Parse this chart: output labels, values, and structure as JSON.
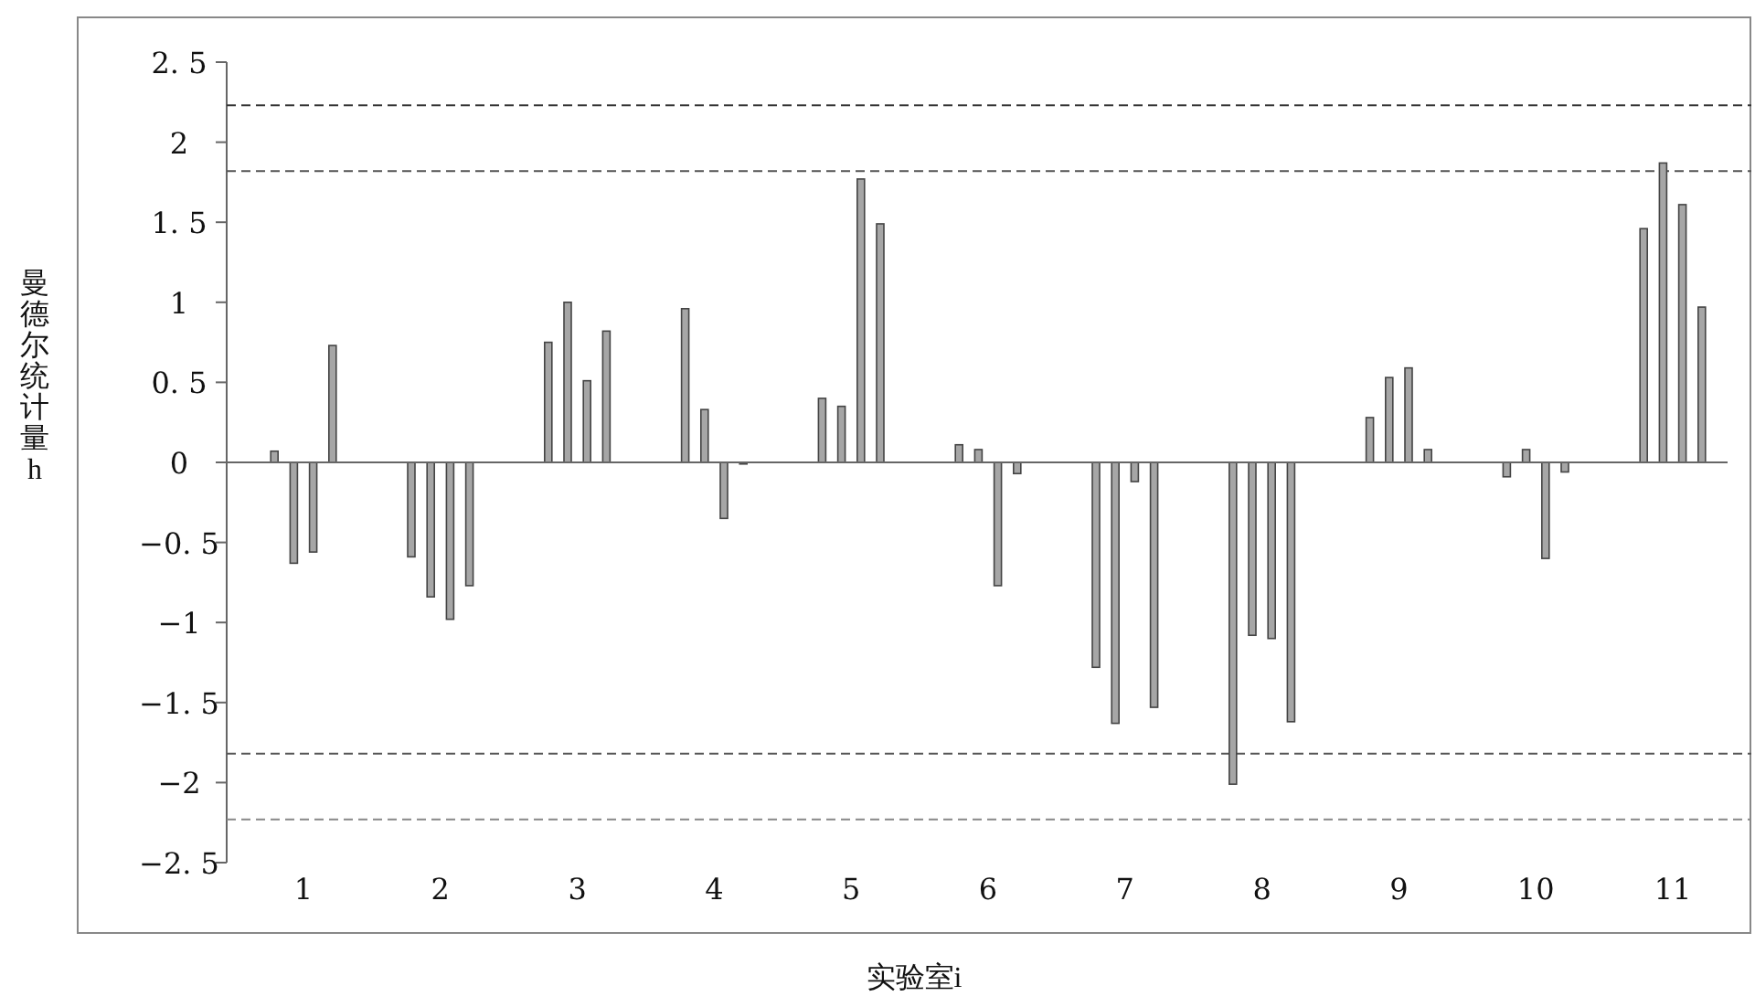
{
  "chart_data": {
    "type": "bar",
    "xlabel": "实验室i",
    "ylabel": "曼德尔统计量h",
    "categories": [
      "1",
      "2",
      "3",
      "4",
      "5",
      "6",
      "7",
      "8",
      "9",
      "10",
      "11"
    ],
    "series": [
      {
        "color": "#a6a6a6",
        "values": [
          0.07,
          -0.59,
          0.75,
          0.96,
          0.4,
          0.11,
          -1.28,
          -2.01,
          0.28,
          -0.09,
          1.46
        ]
      },
      {
        "color": "#a6a6a6",
        "values": [
          -0.63,
          -0.84,
          1.0,
          0.33,
          0.35,
          0.08,
          -1.63,
          -1.08,
          0.53,
          0.08,
          1.87
        ]
      },
      {
        "color": "#a6a6a6",
        "values": [
          -0.56,
          -0.98,
          0.51,
          -0.35,
          1.77,
          -0.77,
          -0.12,
          -1.1,
          0.59,
          -0.6,
          1.61
        ]
      },
      {
        "color": "#a6a6a6",
        "values": [
          0.73,
          -0.77,
          0.82,
          -0.01,
          1.49,
          -0.07,
          -1.53,
          -1.62,
          0.08,
          -0.06,
          0.97
        ]
      }
    ],
    "ylim": [
      -2.5,
      2.5
    ],
    "yticks": [
      {
        "value": 2.5,
        "label": "2. 5"
      },
      2,
      {
        "value": 1.5,
        "label": "1. 5"
      },
      1,
      {
        "value": 0.5,
        "label": "0. 5"
      },
      0,
      {
        "value": -0.5,
        "label": "−0. 5"
      },
      {
        "value": -1,
        "label": "−1"
      },
      {
        "value": -1.5,
        "label": "−1. 5"
      },
      {
        "value": -2,
        "label": "−2"
      },
      {
        "value": -2.5,
        "label": "−2. 5"
      }
    ],
    "ref_lines": [
      {
        "axis": "y",
        "value": 2.23,
        "color": "#333333",
        "line_style": "dashed"
      },
      {
        "axis": "y",
        "value": 1.82,
        "color": "#555555",
        "line_style": "dashed"
      },
      {
        "axis": "y",
        "value": -1.82,
        "color": "#555555",
        "line_style": "dashed"
      },
      {
        "axis": "y",
        "value": -2.23,
        "color": "#888888",
        "line_style": "dashed"
      }
    ]
  }
}
